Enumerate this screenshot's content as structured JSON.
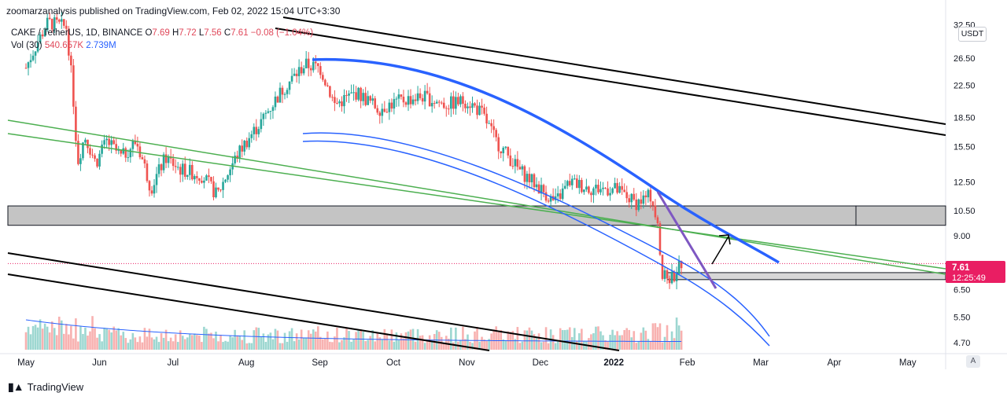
{
  "header": {
    "publisher_caption": "zoomarzanalysis published on TradingView.com, Feb 02, 2022 15:04 UTC+3:30"
  },
  "legend": {
    "symbol": "CAKE / TetherUS, 1D, BINANCE",
    "open_label": "O",
    "open": "7.69",
    "high_label": "H",
    "high": "7.72",
    "low_label": "L",
    "low": "7.56",
    "close_label": "C",
    "close": "7.61",
    "change": "−0.08 (−1.04%)",
    "vol_label": "Vol (30)",
    "vol_value": "540.657K",
    "vol_ma": "2.739M"
  },
  "price_axis": {
    "currency_button": "USDT",
    "current_price": "7.61",
    "countdown": "12:25:49",
    "auto_button": "A"
  },
  "footer": {
    "brand_text": "TradingView"
  },
  "colors": {
    "up_candle": "#26a69a",
    "down_candle": "#ef5350",
    "price_tag": "#e91e63",
    "curve_blue": "#2962ff",
    "trend_green": "#4caf50",
    "purple": "#7e57c2",
    "zone_gray": "#c4c4c4"
  },
  "chart_data": {
    "type": "candlestick",
    "symbol": "CAKE/USDT",
    "interval": "1D",
    "y_scale": "log",
    "y_ticks": [
      32.5,
      26.5,
      22.5,
      18.5,
      15.5,
      12.5,
      10.5,
      9.0,
      6.5,
      5.5,
      4.7
    ],
    "x_ticks": [
      "May",
      "Jun",
      "Jul",
      "Aug",
      "Sep",
      "Oct",
      "Nov",
      "Dec",
      "2022",
      "Feb",
      "Mar",
      "Apr",
      "May"
    ],
    "price_path": [
      {
        "m": 0.0,
        "p": 25.0
      },
      {
        "m": 0.3,
        "p": 33.0
      },
      {
        "m": 0.55,
        "p": 32.0
      },
      {
        "m": 0.7,
        "p": 14.0
      },
      {
        "m": 0.8,
        "p": 16.5
      },
      {
        "m": 0.95,
        "p": 14.0
      },
      {
        "m": 1.1,
        "p": 16.0
      },
      {
        "m": 1.3,
        "p": 14.5
      },
      {
        "m": 1.5,
        "p": 16.0
      },
      {
        "m": 1.7,
        "p": 12.0
      },
      {
        "m": 1.9,
        "p": 14.5
      },
      {
        "m": 2.1,
        "p": 13.5
      },
      {
        "m": 2.4,
        "p": 13.0
      },
      {
        "m": 2.6,
        "p": 11.5
      },
      {
        "m": 2.9,
        "p": 15.0
      },
      {
        "m": 3.2,
        "p": 18.0
      },
      {
        "m": 3.5,
        "p": 22.0
      },
      {
        "m": 3.8,
        "p": 25.5
      },
      {
        "m": 4.0,
        "p": 25.0
      },
      {
        "m": 4.2,
        "p": 20.0
      },
      {
        "m": 4.5,
        "p": 21.5
      },
      {
        "m": 4.8,
        "p": 19.5
      },
      {
        "m": 5.1,
        "p": 20.5
      },
      {
        "m": 5.4,
        "p": 21.0
      },
      {
        "m": 5.7,
        "p": 20.0
      },
      {
        "m": 6.0,
        "p": 20.5
      },
      {
        "m": 6.2,
        "p": 19.0
      },
      {
        "m": 6.4,
        "p": 16.0
      },
      {
        "m": 6.7,
        "p": 13.5
      },
      {
        "m": 7.0,
        "p": 12.0
      },
      {
        "m": 7.2,
        "p": 11.0
      },
      {
        "m": 7.4,
        "p": 12.5
      },
      {
        "m": 7.7,
        "p": 12.0
      },
      {
        "m": 8.0,
        "p": 12.0
      },
      {
        "m": 8.3,
        "p": 11.0
      },
      {
        "m": 8.5,
        "p": 11.5
      },
      {
        "m": 8.6,
        "p": 10.0
      },
      {
        "m": 8.65,
        "p": 7.0
      },
      {
        "m": 8.8,
        "p": 7.0
      },
      {
        "m": 8.92,
        "p": 7.61
      }
    ],
    "current_price": 7.61,
    "horizontal_zones": [
      {
        "top": 10.8,
        "bottom": 9.6
      },
      {
        "top": 7.2,
        "bottom": 6.9
      }
    ],
    "volume_ma": "2.739M",
    "last_volume": "540.657K"
  }
}
